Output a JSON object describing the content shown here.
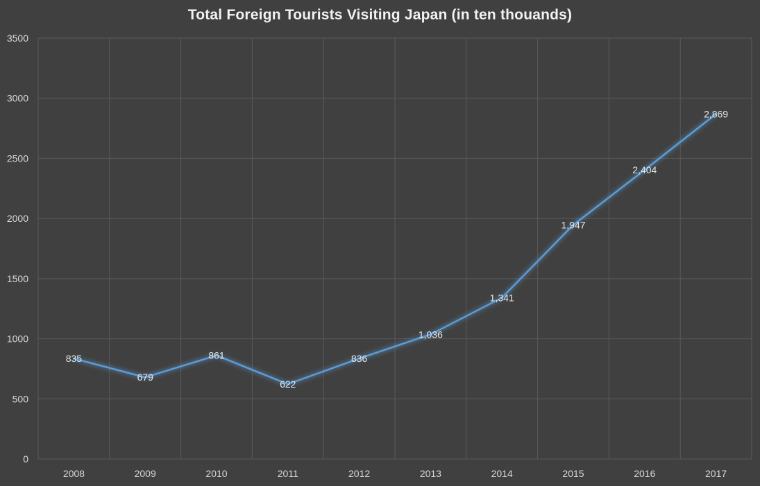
{
  "chart_data": {
    "type": "line",
    "title": "Total Foreign Tourists Visiting Japan (in ten thouands)",
    "xlabel": "",
    "ylabel": "",
    "categories": [
      "2008",
      "2009",
      "2010",
      "2011",
      "2012",
      "2013",
      "2014",
      "2015",
      "2016",
      "2017"
    ],
    "series": [
      {
        "values": [
          835,
          679,
          861,
          622,
          836,
          1036,
          1341,
          1947,
          2404,
          2869
        ],
        "labels": [
          "835",
          "679",
          "861",
          "622",
          "836",
          "1,036",
          "1,341",
          "1,947",
          "2,404",
          "2,869"
        ],
        "color": "#5b9bd5"
      }
    ],
    "ylim": [
      0,
      3500
    ],
    "yticks": [
      0,
      500,
      1000,
      1500,
      2000,
      2500,
      3000,
      3500
    ],
    "ytick_labels": [
      "0",
      "500",
      "1000",
      "1500",
      "2000",
      "2500",
      "3000",
      "3500"
    ],
    "grid": true,
    "legend": "none",
    "background_color": "#404040",
    "grid_color": "#5a5a5a",
    "text_color": "#d9d9d9"
  }
}
